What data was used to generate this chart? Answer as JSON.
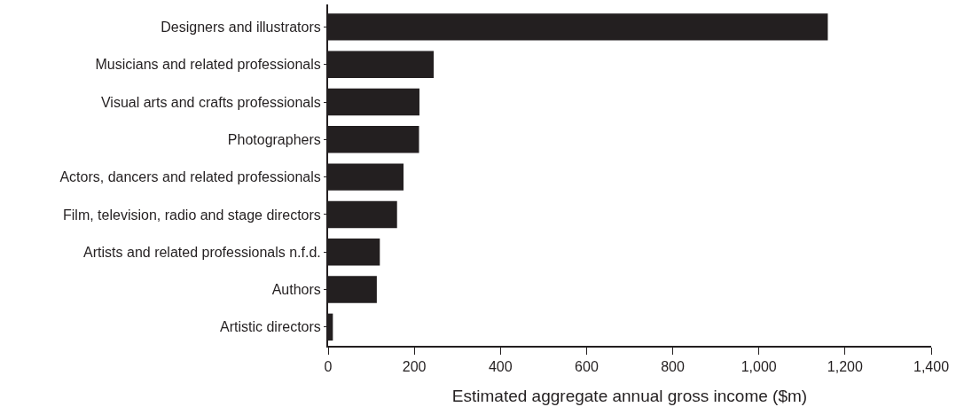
{
  "chart_data": {
    "type": "bar",
    "orientation": "horizontal",
    "xlabel": "Estimated aggregate annual gross income ($m)",
    "categories": [
      "Designers and illustrators",
      "Musicians and related professionals",
      "Visual arts and crafts professionals",
      "Photographers",
      "Actors, dancers and related professionals",
      "Film, television, radio and stage directors",
      "Artists and related professionals n.f.d.",
      "Authors",
      "Artistic directors"
    ],
    "values": [
      1160,
      245,
      212,
      211,
      175,
      160,
      120,
      113,
      11
    ],
    "color": "#231f20",
    "xlim": [
      0,
      1400
    ],
    "xticks": [
      0,
      200,
      400,
      600,
      800,
      {
        "value": 1000,
        "label": "1,000"
      },
      {
        "value": 1200,
        "label": "1,200"
      },
      {
        "value": 1400,
        "label": "1,400"
      }
    ],
    "grid": false
  }
}
